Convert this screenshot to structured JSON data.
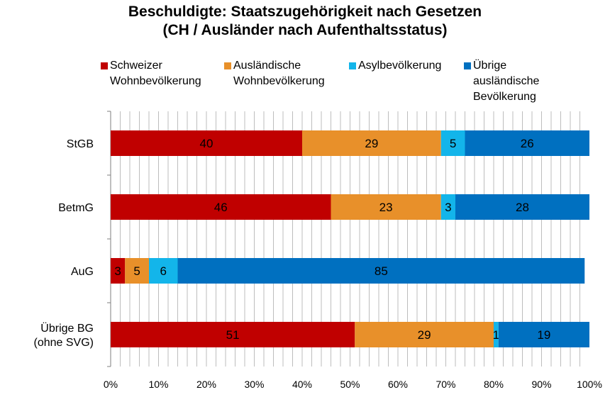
{
  "chart_data": {
    "type": "bar",
    "orientation": "horizontal",
    "stacked": true,
    "title_line1": "Beschuldigte: Staatszugehörigkeit nach Gesetzen",
    "title_line2": "(CH / Ausländer nach Aufenthaltsstatus)",
    "categories": [
      "StGB",
      "BetmG",
      "AuG",
      "Übrige BG (ohne SVG)"
    ],
    "category_lines": [
      [
        "StGB"
      ],
      [
        "BetmG"
      ],
      [
        "AuG"
      ],
      [
        "Übrige BG",
        "(ohne SVG)"
      ]
    ],
    "series": [
      {
        "name": "Schweizer Wohnbevölkerung",
        "legend_lines": [
          "Schweizer",
          "Wohnbevölkerung"
        ],
        "color": "#c00000",
        "values": [
          40,
          46,
          3,
          51
        ]
      },
      {
        "name": "Ausländische Wohnbevölkerung",
        "legend_lines": [
          "Ausländische",
          "Wohnbevölkerung"
        ],
        "color": "#e8902a",
        "values": [
          29,
          23,
          5,
          29
        ]
      },
      {
        "name": "Asylbevölkerung",
        "legend_lines": [
          "Asylbevölkerung"
        ],
        "color": "#13b5ea",
        "values": [
          5,
          3,
          6,
          1
        ]
      },
      {
        "name": "Übrige ausländische Bevölkerung",
        "legend_lines": [
          "Übrige ausländische",
          "Bevölkerung"
        ],
        "color": "#0070c0",
        "values": [
          26,
          28,
          85,
          19
        ]
      }
    ],
    "xlim": [
      0,
      100
    ],
    "x_ticks": [
      "0%",
      "10%",
      "20%",
      "30%",
      "40%",
      "50%",
      "60%",
      "70%",
      "80%",
      "90%",
      "100%"
    ],
    "minor_gridlines_every": 2,
    "grid": true,
    "legend_position": "top"
  }
}
